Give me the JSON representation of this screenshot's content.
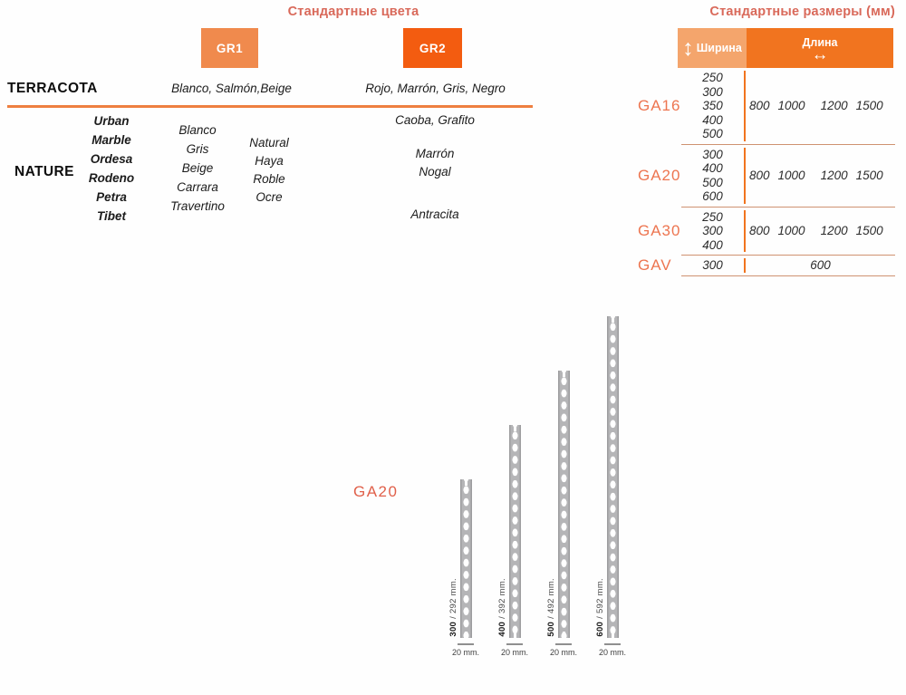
{
  "colors_section": {
    "title": "Стандартные цвета",
    "gr1_label": "GR1",
    "gr2_label": "GR2",
    "terracota": {
      "name": "TERRACOTA",
      "gr1_colors": "Blanco, Salmón,Beige",
      "gr2_colors": "Rojo, Marrón, Gris, Negro"
    },
    "nature": {
      "name": "NATURE",
      "models": [
        "Urban",
        "Marble",
        "Ordesa",
        "Rodeno",
        "Petra",
        "Tibet"
      ],
      "gr1_colors_col1": [
        "Blanco",
        "Gris",
        "Beige",
        "Carrara",
        "Travertino"
      ],
      "gr1_colors_col2": [
        "Natural",
        "Haya",
        "Roble",
        "Ocre"
      ],
      "gr2_colors_top": "Caoba, Grafito",
      "gr2_colors_mid": [
        "Marrón",
        "Nogal"
      ],
      "gr2_colors_bottom": "Antracita"
    },
    "accent_colors": {
      "gr1_badge": "#f08a4d",
      "gr2_badge": "#f35c10",
      "divider": "#ee7f40",
      "title": "#d9695a"
    }
  },
  "sizes_section": {
    "title": "Стандартные размеры (мм)",
    "header": {
      "width_label": "Ширина",
      "length_label": "Длина"
    },
    "groups": [
      {
        "label": "GA16",
        "widths": [
          "250",
          "300",
          "350",
          "400",
          "500"
        ],
        "lengths": [
          "800",
          "1000",
          "1200",
          "1500"
        ]
      },
      {
        "label": "GA20",
        "widths": [
          "300",
          "400",
          "500",
          "600"
        ],
        "lengths": [
          "800",
          "1000",
          "1200",
          "1500"
        ]
      },
      {
        "label": "GA30",
        "widths": [
          "250",
          "300",
          "400"
        ],
        "lengths": [
          "800",
          "1000",
          "1200",
          "1500"
        ]
      },
      {
        "label": "GAV",
        "widths": [
          "300"
        ],
        "lengths": [
          "600"
        ]
      }
    ],
    "accent_colors": {
      "header_width_bg": "#f4a56c",
      "header_length_bg": "#f1741f",
      "ga_label": "#ed7550"
    }
  },
  "diagram": {
    "label": "GA20",
    "unit_label": "mm.",
    "base_label": "20 mm.",
    "posts": [
      {
        "nominal": "300",
        "actual_mm": 292
      },
      {
        "nominal": "400",
        "actual_mm": 392
      },
      {
        "nominal": "500",
        "actual_mm": 492
      },
      {
        "nominal": "600",
        "actual_mm": 592
      }
    ]
  }
}
